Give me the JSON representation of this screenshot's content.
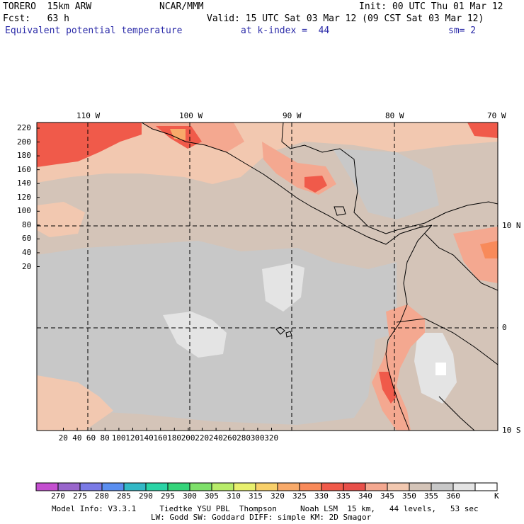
{
  "header": {
    "model": "TORERO  15km ARW",
    "center": "NCAR/MMM",
    "init": "Init: 00 UTC Thu 01 Mar 12",
    "fcst": "Fcst:   63 h",
    "valid": "Valid: 15 UTC Sat 03 Mar 12 (09 CST Sat 03 Mar 12)",
    "field": "Equivalent potential temperature",
    "level": "at k-index =  44",
    "smoothing": "sm= 2"
  },
  "map": {
    "lon_labels": [
      "110 W",
      "100 W",
      "90 W",
      "80 W",
      "70 W"
    ],
    "lat_labels": [
      "10 N",
      "0",
      "10 S"
    ],
    "y_ticks": [
      "220",
      "200",
      "180",
      "160",
      "140",
      "120",
      "100",
      "80",
      "60",
      "40",
      "20"
    ],
    "x_ticks": [
      "20",
      "40",
      "60",
      "80",
      "100",
      "120",
      "140",
      "160",
      "180",
      "200",
      "220",
      "240",
      "260",
      "280",
      "300",
      "320"
    ]
  },
  "colorbar": {
    "unit": "K",
    "labels": [
      "270",
      "275",
      "280",
      "285",
      "290",
      "295",
      "300",
      "305",
      "310",
      "315",
      "320",
      "325",
      "330",
      "335",
      "340",
      "345",
      "350",
      "355",
      "360"
    ],
    "colors": [
      "#c44fd0",
      "#9966cc",
      "#7a7ae6",
      "#5a8ef0",
      "#33b8c6",
      "#2ad4a6",
      "#34d47a",
      "#7ee06a",
      "#b8ec6a",
      "#e8f06e",
      "#f8d06a",
      "#f8aa6a",
      "#f88a5a",
      "#f05a4a",
      "#e8504a",
      "#f4a890",
      "#f2c8b0",
      "#d4c4b8",
      "#c8c8c8",
      "#e4e4e4",
      "#ffffff"
    ]
  },
  "footer": {
    "line1": "Model Info: V3.3.1     Tiedtke YSU PBL  Thompson     Noah LSM  15 km,   44 levels,   53 sec",
    "line2": "LW: Godd SW: Goddard DIFF: simple KM: 2D Smagor"
  }
}
